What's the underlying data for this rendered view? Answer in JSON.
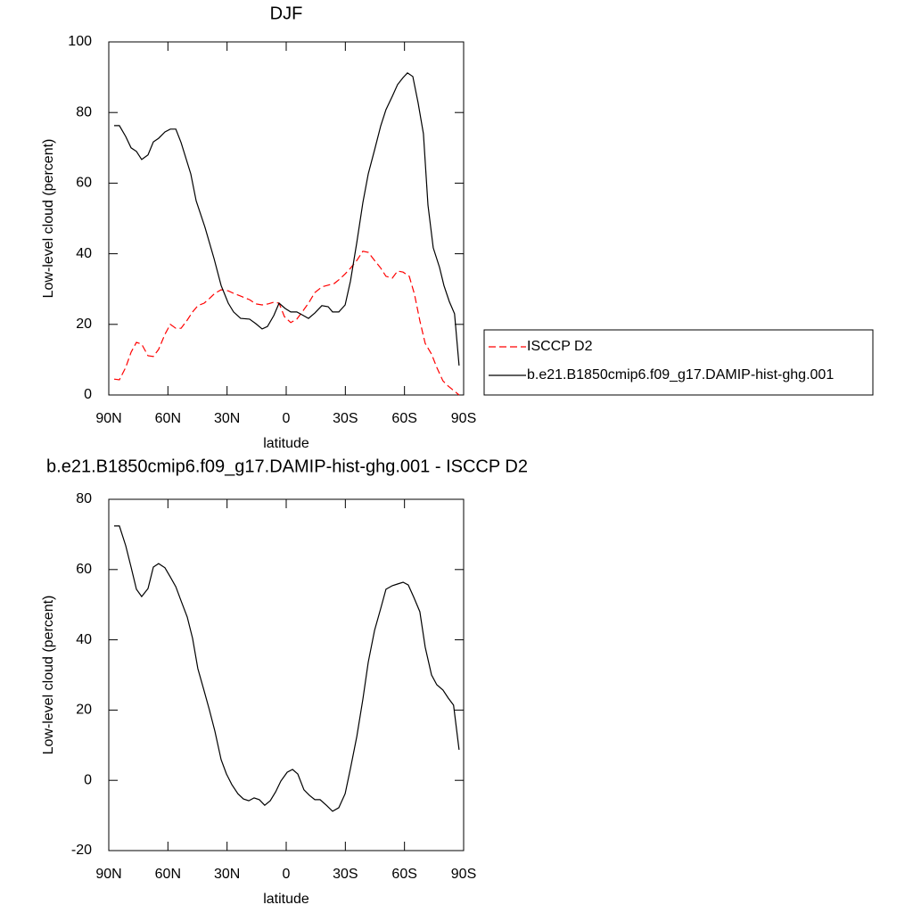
{
  "chart_data": [
    {
      "type": "line",
      "title": "DJF",
      "xlabel": "latitude",
      "ylabel": "Low-level cloud (percent)",
      "xlim": [
        90,
        -90
      ],
      "xticks": [
        {
          "value": 90,
          "label": "90N"
        },
        {
          "value": 60,
          "label": "60N"
        },
        {
          "value": 30,
          "label": "30N"
        },
        0,
        {
          "value": -30,
          "label": "30S"
        },
        {
          "value": -60,
          "label": "60S"
        },
        {
          "value": -90,
          "label": "90S"
        }
      ],
      "ylim": [
        0,
        100
      ],
      "yticks": [
        0,
        20,
        40,
        60,
        80,
        100
      ],
      "legend": "right",
      "series": [
        {
          "name": "ISCCP D2",
          "color": "#ff0000",
          "dash": true,
          "x": [
            87.3,
            84.6,
            81.4,
            78.7,
            76,
            73.3,
            70.1,
            67.4,
            64.7,
            61.5,
            58.8,
            56,
            53.3,
            50.2,
            47.5,
            44.8,
            41.6,
            39,
            36.2,
            33,
            29.4,
            26.7,
            23.1,
            18.6,
            15.4,
            12.2,
            9.1,
            6.3,
            3.6,
            0.9,
            -2.3,
            -5.4,
            -8.1,
            -11.3,
            -14.5,
            -18.1,
            -21.3,
            -24.4,
            -27.1,
            -29.9,
            -32.6,
            -35.8,
            -38.9,
            -41.6,
            -44.8,
            -48,
            -50.6,
            -53.8,
            -56.5,
            -59.3,
            -62.4,
            -65.1,
            -67.8,
            -70.5,
            -73.7,
            -76.4,
            -79.5,
            -82.2,
            -84.9,
            -87.7
          ],
          "values": [
            4.5,
            4.3,
            7.8,
            12.1,
            14.9,
            14.4,
            11.1,
            10.9,
            12.9,
            17.2,
            20,
            18.9,
            18.9,
            21.2,
            23.5,
            25.3,
            26,
            27.3,
            28.8,
            29.8,
            29.5,
            28.8,
            28,
            27,
            25.8,
            25.5,
            25.8,
            26.3,
            26,
            22.2,
            20.5,
            21.5,
            23.5,
            26,
            29,
            30.6,
            31.1,
            31.6,
            32.8,
            34.3,
            35.9,
            38.1,
            40.7,
            40.4,
            38.1,
            35.9,
            33.6,
            33.1,
            35.1,
            34.8,
            33.6,
            28.5,
            21,
            14.6,
            11.6,
            7.8,
            4,
            2.5,
            1.3,
            0
          ]
        },
        {
          "name": "b.e21.B1850cmip6.f09_g17.DAMIP-hist-ghg.001",
          "color": "#000000",
          "dash": false,
          "x": [
            87.3,
            84.6,
            81.4,
            78.7,
            76,
            73.3,
            70.1,
            67.4,
            64.7,
            61.5,
            58.8,
            56,
            53.3,
            48.4,
            45.7,
            41.2,
            36.6,
            33,
            29.4,
            26.7,
            23.1,
            18.6,
            15.4,
            12.2,
            9.5,
            6.3,
            3.6,
            0.5,
            -2.3,
            -5.4,
            -8.1,
            -11.3,
            -14.5,
            -18.1,
            -21.3,
            -23.5,
            -26.7,
            -29.9,
            -32.6,
            -35.8,
            -38.9,
            -41.6,
            -44.8,
            -48,
            -50.6,
            -53.8,
            -56.5,
            -59.3,
            -61.5,
            -64.2,
            -66.9,
            -69.6,
            -71.9,
            -74.6,
            -77.8,
            -80,
            -82.7,
            -85.4,
            -87.7
          ],
          "values": [
            76.3,
            76.3,
            73.2,
            70,
            69,
            66.7,
            68,
            71.7,
            72.7,
            74.5,
            75.3,
            75.3,
            71.5,
            62.6,
            55,
            47.5,
            38.6,
            31,
            26,
            23.5,
            21.7,
            21.5,
            20.2,
            18.7,
            19.4,
            22.5,
            26,
            24.5,
            23.5,
            23.5,
            22.7,
            21.7,
            23.2,
            25.3,
            25,
            23.5,
            23.5,
            25.5,
            32.3,
            43.2,
            54.5,
            62.6,
            69.4,
            76.3,
            80.8,
            84.6,
            87.9,
            89.9,
            91.2,
            90.2,
            82.8,
            74,
            53.8,
            41.7,
            36.1,
            31,
            26.5,
            23,
            8.3
          ]
        }
      ]
    },
    {
      "type": "line",
      "title": "b.e21.B1850cmip6.f09_g17.DAMIP-hist-ghg.001 - ISCCP D2",
      "xlabel": "latitude",
      "ylabel": "Low-level cloud (percent)",
      "xlim": [
        90,
        -90
      ],
      "xticks": [
        {
          "value": 90,
          "label": "90N"
        },
        {
          "value": 60,
          "label": "60N"
        },
        {
          "value": 30,
          "label": "30N"
        },
        0,
        {
          "value": -30,
          "label": "30S"
        },
        {
          "value": -60,
          "label": "60S"
        },
        {
          "value": -90,
          "label": "90S"
        }
      ],
      "ylim": [
        -20,
        80
      ],
      "yticks": [
        -20,
        0,
        20,
        40,
        60,
        80
      ],
      "series": [
        {
          "color": "#000000",
          "dash": false,
          "x": [
            87.3,
            84.6,
            81.4,
            78.7,
            76,
            73.3,
            70.1,
            67.4,
            64.7,
            61.5,
            58.8,
            56,
            53.3,
            50.2,
            47.5,
            44.8,
            41.6,
            39,
            36.2,
            33,
            30.3,
            27.6,
            24.5,
            21.7,
            19,
            16.3,
            13.6,
            10.9,
            8.1,
            5.4,
            2.7,
            -0.5,
            -3.2,
            -5.9,
            -9,
            -11.8,
            -14.5,
            -17.2,
            -20.4,
            -23.5,
            -26.7,
            -29.9,
            -32.6,
            -35.8,
            -38.9,
            -41.6,
            -44.8,
            -48,
            -50.6,
            -53.8,
            -56.5,
            -59.3,
            -61.9,
            -64.7,
            -67.8,
            -70.5,
            -73.7,
            -76.4,
            -79.5,
            -82.2,
            -84.9,
            -87.7
          ],
          "values": [
            72.4,
            72.4,
            66.8,
            60.7,
            54.4,
            52.3,
            54.6,
            60.7,
            61.7,
            60.5,
            57.9,
            55.1,
            51.1,
            46.5,
            40.4,
            31.8,
            25.4,
            20.1,
            14,
            5.9,
            1.8,
            -1.2,
            -3.8,
            -5.3,
            -5.8,
            -5,
            -5.5,
            -7.1,
            -5.8,
            -3.3,
            -0.2,
            2.3,
            3.1,
            1.8,
            -2.7,
            -4.3,
            -5.5,
            -5.5,
            -7.1,
            -8.8,
            -7.8,
            -3.8,
            3.4,
            12.5,
            23.1,
            33.6,
            42.7,
            49,
            54.4,
            55.4,
            55.9,
            56.4,
            55.6,
            52.1,
            48,
            37.9,
            30,
            27.2,
            25.7,
            23.4,
            21.4,
            8.7
          ]
        }
      ]
    }
  ]
}
